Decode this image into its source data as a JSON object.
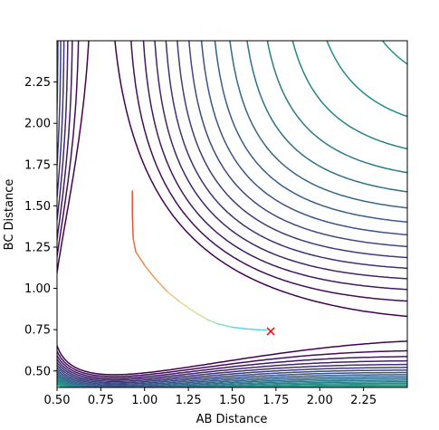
{
  "chart_data": {
    "type": "contour",
    "title": "",
    "xlabel": "AB Distance",
    "ylabel": "BC Distance",
    "xlim": [
      0.5,
      2.5
    ],
    "ylim": [
      0.4,
      2.5
    ],
    "grid": false,
    "legend": "none",
    "x_ticks": [
      0.5,
      0.75,
      1.0,
      1.25,
      1.5,
      1.75,
      2.0,
      2.25
    ],
    "x_tick_labels": [
      "0.50",
      "0.75",
      "1.00",
      "1.25",
      "1.50",
      "1.75",
      "2.00",
      "2.25"
    ],
    "y_ticks": [
      0.5,
      0.75,
      1.0,
      1.25,
      1.5,
      1.75,
      2.0,
      2.25
    ],
    "y_tick_labels": [
      "0.50",
      "0.75",
      "1.00",
      "1.25",
      "1.50",
      "1.75",
      "2.00",
      "2.25"
    ],
    "colormap": [
      "#440154",
      "#3b528b",
      "#21918c",
      "#5ec962",
      "#fde725"
    ],
    "potential": {
      "form": "LEPS-like Morse surface",
      "equilibrium_distance": 0.74,
      "morse_a": 2.0,
      "well_depth": 1.0,
      "levels": [
        -0.96,
        -0.9,
        -0.84,
        -0.78,
        -0.72,
        -0.66,
        -0.6,
        -0.54,
        -0.48,
        -0.42,
        -0.36,
        -0.3,
        -0.24,
        -0.18,
        -0.12,
        -0.06,
        0.0,
        0.2,
        0.5,
        1.0,
        1.6,
        2.4,
        3.4,
        4.6,
        6.0,
        7.6,
        9.4,
        11.4
      ]
    },
    "trajectory": {
      "x": [
        0.93,
        0.93,
        0.935,
        0.95,
        1.0,
        1.06,
        1.13,
        1.2,
        1.28,
        1.36,
        1.42,
        1.5,
        1.58,
        1.64,
        1.7
      ],
      "y": [
        1.59,
        1.45,
        1.3,
        1.22,
        1.14,
        1.06,
        0.98,
        0.92,
        0.86,
        0.81,
        0.785,
        0.765,
        0.755,
        0.75,
        0.748
      ],
      "colors": [
        "#e8402c",
        "#ea4a2e",
        "#ef6337",
        "#f27a3f",
        "#f48f48",
        "#f4a15a",
        "#f1c27a",
        "#e4d98b",
        "#cfe38e",
        "#9fe3a6",
        "#72e0c6",
        "#54d6e6"
      ]
    },
    "end_marker": {
      "x": 1.72,
      "y": 0.74,
      "symbol": "x",
      "color": "#ff0000"
    }
  }
}
